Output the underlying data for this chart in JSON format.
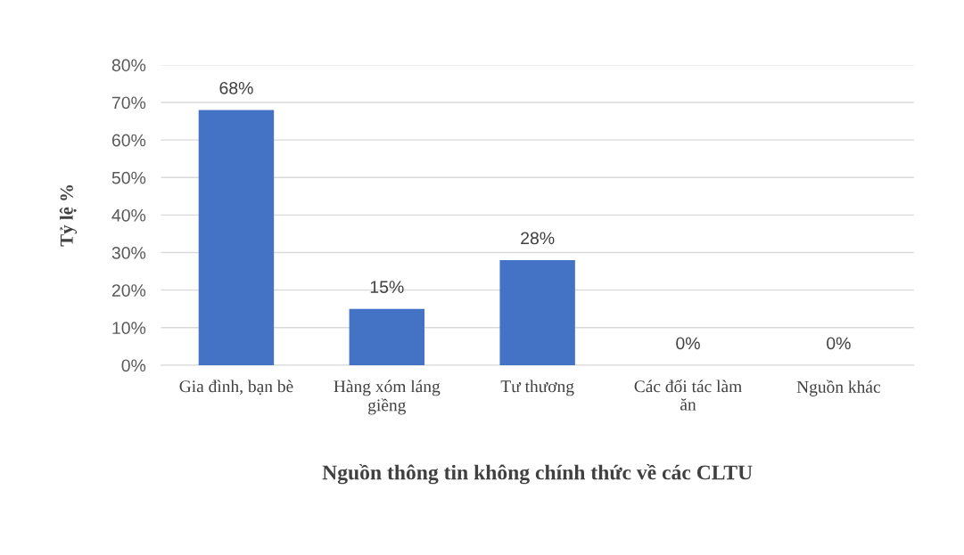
{
  "chart_data": {
    "type": "bar",
    "xlabel": "Nguồn thông tin không chính thức về các CLTU",
    "ylabel": "Tỷ lệ %",
    "categories": [
      "Gia đình, bạn bè",
      "Hàng xóm láng giềng",
      "Tư thương",
      "Các đối tác làm ăn",
      "Nguồn khác"
    ],
    "values": [
      68,
      15,
      28,
      0,
      0
    ],
    "value_labels": [
      "68%",
      "15%",
      "28%",
      "0%",
      "0%"
    ],
    "color": "#4472c4",
    "ylim": [
      0,
      80
    ],
    "yticks": [
      {
        "value": 0,
        "label": "0%"
      },
      {
        "value": 10,
        "label": "10%"
      },
      {
        "value": 20,
        "label": "20%"
      },
      {
        "value": 30,
        "label": "30%"
      },
      {
        "value": 40,
        "label": "40%"
      },
      {
        "value": 50,
        "label": "50%"
      },
      {
        "value": 60,
        "label": "60%"
      },
      {
        "value": 70,
        "label": "70%"
      },
      {
        "value": 80,
        "label": "80%"
      }
    ],
    "grid": "y",
    "legend": false
  }
}
